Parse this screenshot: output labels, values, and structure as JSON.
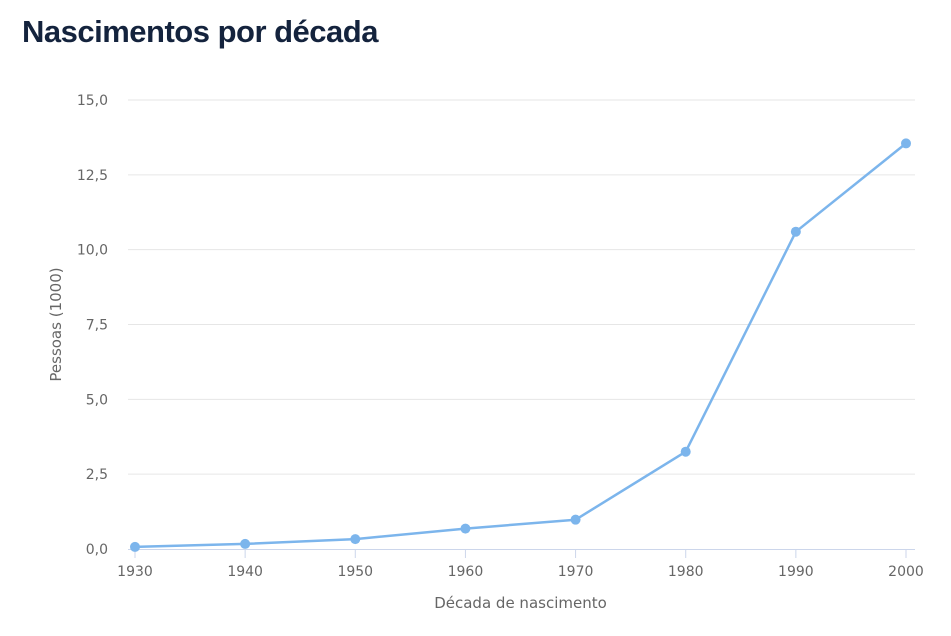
{
  "chart_data": {
    "type": "line",
    "title": "Nascimentos por década",
    "xlabel": "Década de nascimento",
    "ylabel": "Pessoas (1000)",
    "categories": [
      "1930",
      "1940",
      "1950",
      "1960",
      "1970",
      "1980",
      "1990",
      "2000"
    ],
    "series": [
      {
        "values": [
          0.07,
          0.17,
          0.33,
          0.68,
          0.98,
          3.25,
          10.6,
          13.55
        ]
      }
    ],
    "ylim": [
      0,
      15
    ],
    "yticks": [
      0,
      2.5,
      5,
      7.5,
      10,
      12.5,
      15
    ],
    "ytick_labels": [
      "0,0",
      "2,5",
      "5,0",
      "7,5",
      "10,0",
      "12,5",
      "15,0"
    ],
    "grid": true,
    "legend": "none",
    "colors": {
      "line": "#7cb5ec",
      "grid": "#e6e6e6",
      "axis": "#ccd6eb",
      "title": "#14233d",
      "text": "#666666"
    }
  }
}
